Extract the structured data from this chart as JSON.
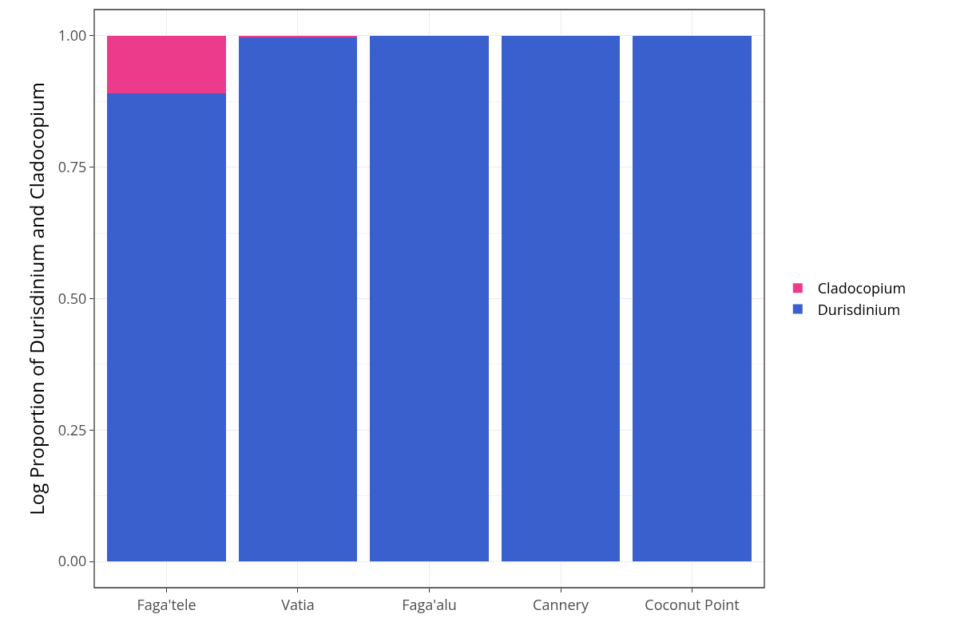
{
  "chart_data": {
    "type": "bar",
    "ylabel": "Log Proportion of Durisdinium and Cladocopium",
    "categories": [
      "Faga'tele",
      "Vatia",
      "Faga'alu",
      "Cannery",
      "Coconut Point"
    ],
    "series": [
      {
        "name": "Durisdinium",
        "color": "#3a60ce",
        "values": [
          0.89,
          0.998,
          1,
          1,
          1
        ]
      },
      {
        "name": "Cladocopium",
        "color": "#ed3b8b",
        "values": [
          0.11,
          0.002,
          0,
          0,
          0
        ]
      }
    ],
    "stacked": true,
    "ylim": [
      -0.05,
      1.05
    ],
    "yticks": [
      {
        "value": 0,
        "label": "0.00"
      },
      {
        "value": 0.25,
        "label": "0.25"
      },
      {
        "value": 0.5,
        "label": "0.50"
      },
      {
        "value": 0.75,
        "label": "0.75"
      },
      {
        "value": 1,
        "label": "1.00"
      }
    ],
    "grid": true,
    "legend": "right"
  }
}
